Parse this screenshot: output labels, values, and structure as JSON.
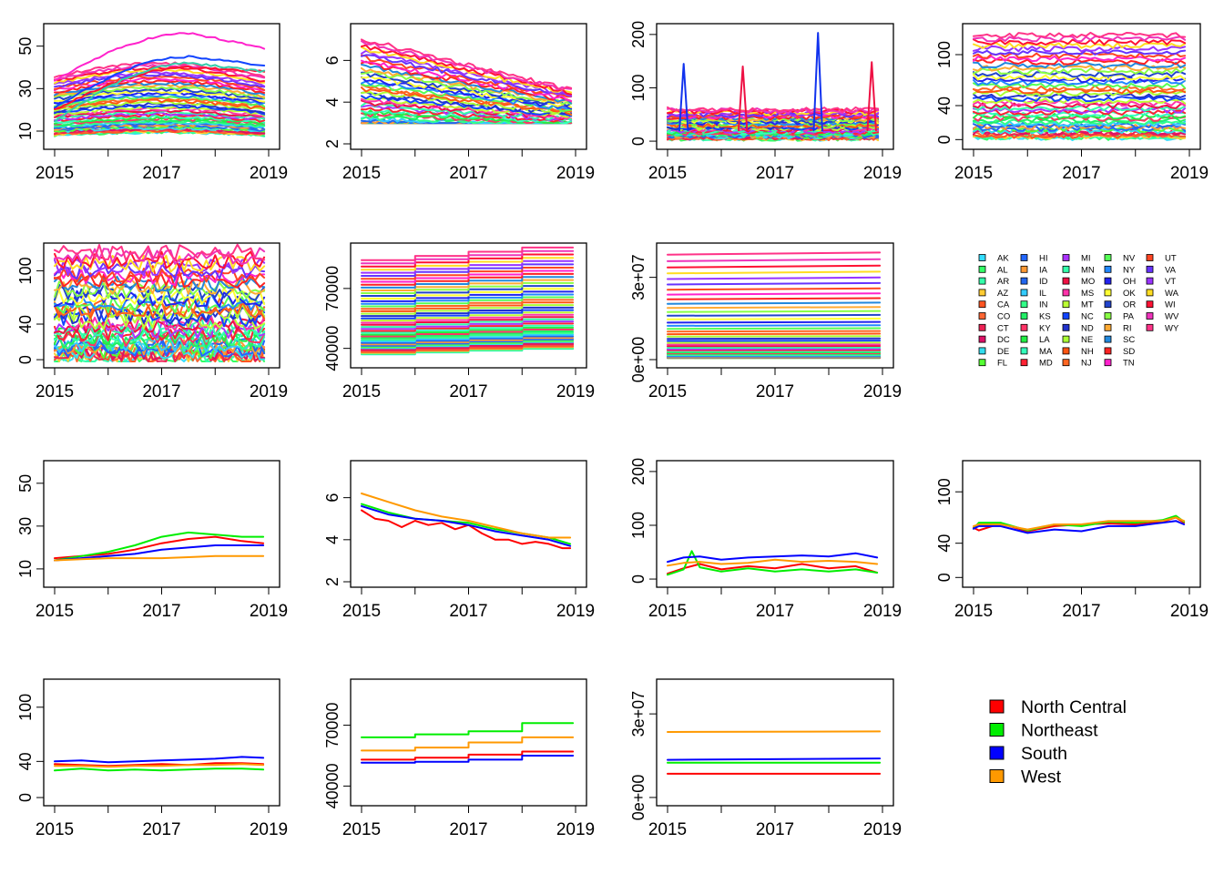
{
  "state_codes": [
    "AK",
    "AL",
    "AR",
    "AZ",
    "CA",
    "CO",
    "CT",
    "DC",
    "DE",
    "FL",
    "HI",
    "IA",
    "ID",
    "IL",
    "IN",
    "KS",
    "KY",
    "LA",
    "MA",
    "MD",
    "MI",
    "MN",
    "MO",
    "MS",
    "MT",
    "NC",
    "ND",
    "NE",
    "NH",
    "NJ",
    "NV",
    "NY",
    "OH",
    "OK",
    "OR",
    "PA",
    "RI",
    "SC",
    "SD",
    "TN",
    "UT",
    "VA",
    "VT",
    "WA",
    "WI",
    "WV",
    "WY"
  ],
  "state_colors": [
    "#33ddff",
    "#33ff66",
    "#33ffaa",
    "#ffcc33",
    "#ff5522",
    "#ff6633",
    "#ee2255",
    "#dd1166",
    "#33ddee",
    "#55ff33",
    "#2266ff",
    "#ff9933",
    "#2266ee",
    "#33ccff",
    "#33ff88",
    "#22ee66",
    "#ff3366",
    "#22ee44",
    "#33ffbb",
    "#ff2233",
    "#aa33ff",
    "#33ffaa",
    "#ee1144",
    "#ff33aa",
    "#bbff33",
    "#1144ff",
    "#2233cc",
    "#aaff33",
    "#ff5511",
    "#ff6622",
    "#55ff55",
    "#2288ff",
    "#2222ee",
    "#ffff33",
    "#2244cc",
    "#88ff44",
    "#ffaa33",
    "#2288dd",
    "#ff2222",
    "#ff22cc",
    "#ff4422",
    "#6633ff",
    "#9933ff",
    "#ffdd22",
    "#ff1133",
    "#ee33bb",
    "#ff3388"
  ],
  "region_legend": [
    {
      "name": "North Central",
      "color": "#ff0000"
    },
    {
      "name": "Northeast",
      "color": "#00ee00"
    },
    {
      "name": "South",
      "color": "#0000ff"
    },
    {
      "name": "West",
      "color": "#ff9900"
    }
  ],
  "chart_data": [
    {
      "id": "s1",
      "type": "line",
      "level": "state",
      "xlim": [
        2015,
        2019
      ],
      "xticks": [
        "2015",
        "2017",
        "2019"
      ],
      "ylim": [
        4,
        58
      ],
      "yticks": [
        "10",
        "30",
        "50"
      ],
      "ytick_values": [
        10,
        30,
        50
      ],
      "description_series": "one line per state, 47 series",
      "band": [
        8,
        36
      ],
      "highlights": [
        [
          34,
          56,
          49
        ],
        [
          21,
          45,
          41
        ],
        [
          20,
          40,
          38
        ],
        [
          15,
          42,
          38
        ]
      ]
    },
    {
      "id": "s2",
      "type": "line",
      "level": "state",
      "xlim": [
        2015,
        2019
      ],
      "xticks": [
        "2015",
        "2017",
        "2019"
      ],
      "ylim": [
        2,
        7.5
      ],
      "yticks": [
        "2",
        "4",
        "6"
      ],
      "ytick_values": [
        2,
        4,
        6
      ],
      "band": [
        2.6,
        7.1
      ],
      "trend": "decline"
    },
    {
      "id": "s3",
      "type": "line",
      "level": "state",
      "xlim": [
        2015,
        2019
      ],
      "xticks": [
        "2015",
        "2017",
        "2019"
      ],
      "ylim": [
        -5,
        210
      ],
      "yticks": [
        "0",
        "100",
        "200"
      ],
      "ytick_values": [
        0,
        100,
        200
      ],
      "band": [
        5,
        60
      ],
      "spikes": [
        [
          2015.3,
          145
        ],
        [
          2016.4,
          140
        ],
        [
          2017.8,
          203
        ],
        [
          2018.8,
          148
        ]
      ]
    },
    {
      "id": "s4",
      "type": "line",
      "level": "state",
      "xlim": [
        2015,
        2019
      ],
      "xticks": [
        "2015",
        "2017",
        "2019"
      ],
      "ylim": [
        -5,
        130
      ],
      "yticks": [
        "0",
        "40",
        "100"
      ],
      "ytick_values": [
        0,
        40,
        100
      ],
      "band": [
        2,
        125
      ]
    },
    {
      "id": "s5",
      "type": "line",
      "level": "state",
      "xlim": [
        2015,
        2019
      ],
      "xticks": [
        "2015",
        "2017",
        "2019"
      ],
      "ylim": [
        -3,
        125
      ],
      "yticks": [
        "0",
        "40",
        "100"
      ],
      "ytick_values": [
        0,
        40,
        100
      ],
      "band": [
        2,
        122
      ]
    },
    {
      "id": "s6",
      "type": "step",
      "level": "state",
      "xlim": [
        2015,
        2019
      ],
      "xticks": [
        "2015",
        "2017",
        "2019"
      ],
      "ylim": [
        33000,
        90000
      ],
      "yticks": [
        "40000",
        "70000"
      ],
      "ytick_values": [
        40000,
        70000
      ],
      "band": [
        37000,
        85000
      ]
    },
    {
      "id": "s7",
      "type": "line",
      "level": "state",
      "xlim": [
        2015,
        2019
      ],
      "xticks": [
        "2015",
        "2017",
        "2019"
      ],
      "ylim": [
        -1000000,
        40500000
      ],
      "yticks": [
        "0e+00",
        "3e+07"
      ],
      "ytick_values": [
        0,
        30000000
      ],
      "band": [
        600000,
        39500000
      ]
    },
    {
      "id": "r1",
      "type": "line",
      "level": "region",
      "xlim": [
        2015,
        2019
      ],
      "xticks": [
        "2015",
        "2017",
        "2019"
      ],
      "ylim": [
        4,
        58
      ],
      "yticks": [
        "10",
        "30",
        "50"
      ],
      "ytick_values": [
        10,
        30,
        50
      ],
      "series": [
        {
          "name": "North Central",
          "x": [
            2015,
            2015.5,
            2016,
            2016.5,
            2017,
            2017.5,
            2018,
            2018.5,
            2018.9
          ],
          "values": [
            15,
            16,
            17,
            19,
            22,
            24,
            25,
            23,
            22
          ]
        },
        {
          "name": "Northeast",
          "x": [
            2015,
            2015.5,
            2016,
            2016.5,
            2017,
            2017.5,
            2018,
            2018.5,
            2018.9
          ],
          "values": [
            14,
            16,
            18,
            21,
            25,
            27,
            26,
            25,
            25
          ]
        },
        {
          "name": "South",
          "x": [
            2015,
            2015.5,
            2016,
            2016.5,
            2017,
            2017.5,
            2018,
            2018.5,
            2018.9
          ],
          "values": [
            14,
            15,
            16,
            17,
            19,
            20,
            21,
            21,
            21
          ]
        },
        {
          "name": "West",
          "x": [
            2015,
            2015.5,
            2016,
            2016.5,
            2017,
            2017.5,
            2018,
            2018.5,
            2018.9
          ],
          "values": [
            14,
            14.5,
            15,
            15,
            15,
            15.5,
            16,
            16,
            16
          ]
        }
      ]
    },
    {
      "id": "r2",
      "type": "line",
      "level": "region",
      "xlim": [
        2015,
        2019
      ],
      "xticks": [
        "2015",
        "2017",
        "2019"
      ],
      "ylim": [
        2,
        7.5
      ],
      "yticks": [
        "2",
        "4",
        "6"
      ],
      "ytick_values": [
        2,
        4,
        6
      ],
      "series": [
        {
          "name": "North Central",
          "x": [
            2015,
            2015.25,
            2015.5,
            2015.75,
            2016,
            2016.25,
            2016.5,
            2016.75,
            2017,
            2017.25,
            2017.5,
            2017.75,
            2018,
            2018.25,
            2018.5,
            2018.75,
            2018.9
          ],
          "values": [
            5.4,
            5.0,
            4.9,
            4.6,
            4.9,
            4.7,
            4.8,
            4.5,
            4.7,
            4.3,
            4.0,
            4.0,
            3.8,
            3.9,
            3.8,
            3.6,
            3.6
          ]
        },
        {
          "name": "Northeast",
          "x": [
            2015,
            2015.5,
            2016,
            2016.5,
            2017,
            2017.5,
            2018,
            2018.5,
            2018.9
          ],
          "values": [
            5.7,
            5.3,
            5.0,
            4.9,
            4.8,
            4.5,
            4.3,
            4.1,
            3.8
          ]
        },
        {
          "name": "South",
          "x": [
            2015,
            2015.5,
            2016,
            2016.5,
            2017,
            2017.5,
            2018,
            2018.5,
            2018.9
          ],
          "values": [
            5.6,
            5.2,
            5.0,
            4.9,
            4.7,
            4.4,
            4.2,
            4.0,
            3.7
          ]
        },
        {
          "name": "West",
          "x": [
            2015,
            2015.5,
            2016,
            2016.5,
            2017,
            2017.5,
            2018,
            2018.5,
            2018.9
          ],
          "values": [
            6.2,
            5.8,
            5.4,
            5.1,
            4.9,
            4.6,
            4.3,
            4.1,
            4.1
          ]
        }
      ]
    },
    {
      "id": "r3",
      "type": "line",
      "level": "region",
      "xlim": [
        2015,
        2019
      ],
      "xticks": [
        "2015",
        "2017",
        "2019"
      ],
      "ylim": [
        -5,
        210
      ],
      "yticks": [
        "0",
        "100",
        "200"
      ],
      "ytick_values": [
        0,
        100,
        200
      ],
      "series": [
        {
          "name": "North Central",
          "x": [
            2015,
            2015.3,
            2015.6,
            2016,
            2016.5,
            2017,
            2017.5,
            2018,
            2018.5,
            2018.9
          ],
          "values": [
            10,
            20,
            28,
            18,
            24,
            20,
            28,
            20,
            24,
            12
          ]
        },
        {
          "name": "Northeast",
          "x": [
            2015,
            2015.3,
            2015.45,
            2015.6,
            2016,
            2016.5,
            2017,
            2017.5,
            2018,
            2018.5,
            2018.9
          ],
          "values": [
            8,
            18,
            52,
            22,
            14,
            20,
            14,
            18,
            14,
            18,
            12
          ]
        },
        {
          "name": "South",
          "x": [
            2015,
            2015.3,
            2015.6,
            2016,
            2016.5,
            2017,
            2017.5,
            2018,
            2018.5,
            2018.9
          ],
          "values": [
            32,
            40,
            42,
            36,
            40,
            42,
            44,
            42,
            48,
            40
          ]
        },
        {
          "name": "West",
          "x": [
            2015,
            2015.3,
            2015.6,
            2016,
            2016.5,
            2017,
            2017.5,
            2018,
            2018.5,
            2018.9
          ],
          "values": [
            25,
            30,
            32,
            28,
            30,
            36,
            32,
            34,
            32,
            28
          ]
        }
      ]
    },
    {
      "id": "r4",
      "type": "line",
      "level": "region",
      "xlim": [
        2015,
        2019
      ],
      "xticks": [
        "2015",
        "2017",
        "2019"
      ],
      "ylim": [
        -5,
        130
      ],
      "yticks": [
        "0",
        "40",
        "100"
      ],
      "ytick_values": [
        0,
        40,
        100
      ],
      "series": [
        {
          "name": "North Central",
          "x": [
            2015,
            2015.1,
            2015.5,
            2016,
            2016.5,
            2017,
            2017.5,
            2018,
            2018.5,
            2018.75,
            2018.9
          ],
          "values": [
            58,
            55,
            63,
            54,
            60,
            62,
            63,
            62,
            65,
            70,
            64
          ]
        },
        {
          "name": "Northeast",
          "x": [
            2015,
            2015.1,
            2015.5,
            2016,
            2016.5,
            2017,
            2017.5,
            2018,
            2018.5,
            2018.75,
            2018.9
          ],
          "values": [
            57,
            64,
            64,
            55,
            62,
            60,
            65,
            64,
            67,
            72,
            65
          ]
        },
        {
          "name": "South",
          "x": [
            2015,
            2015.1,
            2015.5,
            2016,
            2016.5,
            2017,
            2017.5,
            2018,
            2018.5,
            2018.75,
            2018.9
          ],
          "values": [
            57,
            60,
            60,
            52,
            56,
            54,
            60,
            60,
            64,
            66,
            62
          ]
        },
        {
          "name": "West",
          "x": [
            2015,
            2015.1,
            2015.5,
            2016,
            2016.5,
            2017,
            2017.5,
            2018,
            2018.5,
            2018.75,
            2018.9
          ],
          "values": [
            60,
            62,
            62,
            56,
            62,
            62,
            66,
            66,
            66,
            70,
            66
          ]
        }
      ]
    },
    {
      "id": "r5",
      "type": "line",
      "level": "region",
      "xlim": [
        2015,
        2019
      ],
      "xticks": [
        "2015",
        "2017",
        "2019"
      ],
      "ylim": [
        -3,
        125
      ],
      "yticks": [
        "0",
        "40",
        "100"
      ],
      "ytick_values": [
        0,
        40,
        100
      ],
      "series": [
        {
          "name": "North Central",
          "x": [
            2015,
            2015.5,
            2016,
            2016.5,
            2017,
            2017.5,
            2018,
            2018.5,
            2018.9
          ],
          "values": [
            37,
            36,
            35,
            36,
            37,
            36,
            38,
            38,
            37
          ]
        },
        {
          "name": "Northeast",
          "x": [
            2015,
            2015.5,
            2016,
            2016.5,
            2017,
            2017.5,
            2018,
            2018.5,
            2018.9
          ],
          "values": [
            30,
            32,
            30,
            31,
            30,
            31,
            32,
            32,
            31
          ]
        },
        {
          "name": "South",
          "x": [
            2015,
            2015.5,
            2016,
            2016.5,
            2017,
            2017.5,
            2018,
            2018.5,
            2018.9
          ],
          "values": [
            40,
            41,
            39,
            40,
            41,
            42,
            43,
            45,
            44
          ]
        },
        {
          "name": "West",
          "x": [
            2015,
            2015.5,
            2016,
            2016.5,
            2017,
            2017.5,
            2018,
            2018.5,
            2018.9
          ],
          "values": [
            35,
            35,
            34,
            35,
            35,
            36,
            36,
            37,
            36
          ]
        }
      ]
    },
    {
      "id": "r6",
      "type": "step",
      "level": "region",
      "xlim": [
        2015,
        2019
      ],
      "xticks": [
        "2015",
        "2017",
        "2019"
      ],
      "ylim": [
        33000,
        90000
      ],
      "yticks": [
        "40000",
        "70000"
      ],
      "ytick_values": [
        40000,
        70000
      ],
      "series": [
        {
          "name": "North Central",
          "x": [
            2015,
            2016,
            2017,
            2018,
            2018.95
          ],
          "values": [
            53000,
            54000,
            55500,
            57000,
            57000
          ]
        },
        {
          "name": "Northeast",
          "x": [
            2015,
            2016,
            2017,
            2018,
            2018.95
          ],
          "values": [
            64000,
            65500,
            67000,
            71000,
            71000
          ]
        },
        {
          "name": "South",
          "x": [
            2015,
            2016,
            2017,
            2018,
            2018.95
          ],
          "values": [
            51500,
            52000,
            53000,
            55000,
            55000
          ]
        },
        {
          "name": "West",
          "x": [
            2015,
            2016,
            2017,
            2018,
            2018.95
          ],
          "values": [
            57500,
            59000,
            61500,
            64000,
            64000
          ]
        }
      ]
    },
    {
      "id": "r7",
      "type": "line",
      "level": "region",
      "xlim": [
        2015,
        2019
      ],
      "xticks": [
        "2015",
        "2017",
        "2019"
      ],
      "ylim": [
        -1000000,
        40500000
      ],
      "yticks": [
        "0e+00",
        "3e+07"
      ],
      "ytick_values": [
        0,
        30000000
      ],
      "series": [
        {
          "name": "North Central",
          "x": [
            2015,
            2018.95
          ],
          "values": [
            8500000,
            8500000
          ]
        },
        {
          "name": "Northeast",
          "x": [
            2015,
            2018.95
          ],
          "values": [
            12500000,
            12500000
          ]
        },
        {
          "name": "South",
          "x": [
            2015,
            2018.95
          ],
          "values": [
            13500000,
            14000000
          ]
        },
        {
          "name": "West",
          "x": [
            2015,
            2018.95
          ],
          "values": [
            23500000,
            23700000
          ]
        }
      ]
    }
  ]
}
